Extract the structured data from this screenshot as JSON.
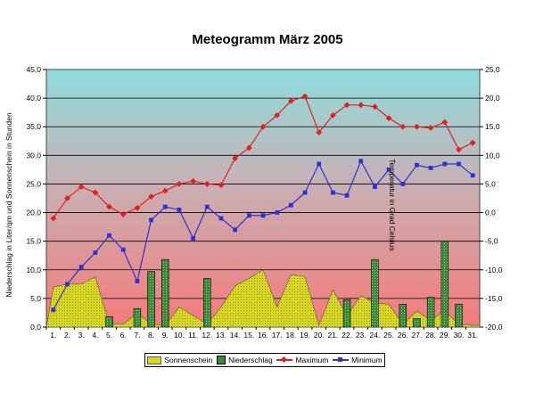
{
  "chart_data": {
    "type": "combo",
    "title": "Meteogramm März 2005",
    "ylabel_left": "Niederschlag in Liter/qm und Sonnenschein in Stunden",
    "ylabel_right": "Temperatur in Grad Celsius",
    "ylim_left": [
      0,
      45
    ],
    "ylim_right": [
      -20,
      25
    ],
    "left_ticks": [
      "0,0",
      "5,0",
      "10,0",
      "15,0",
      "20,0",
      "25,0",
      "30,0",
      "35,0",
      "40,0",
      "45,0"
    ],
    "right_ticks": [
      "-20,0",
      "-15,0",
      "-10,0",
      "-5,0",
      "0,0",
      "5,0",
      "10,0",
      "15,0",
      "20,0",
      "25,0"
    ],
    "categories": [
      "1.",
      "2.",
      "3.",
      "4.",
      "5.",
      "6.",
      "7.",
      "8.",
      "9.",
      "10.",
      "11.",
      "12.",
      "13.",
      "14.",
      "15.",
      "16.",
      "17.",
      "18.",
      "19.",
      "20.",
      "21.",
      "22.",
      "23.",
      "24.",
      "25.",
      "26.",
      "27.",
      "28.",
      "29.",
      "30.",
      "31."
    ],
    "series": [
      {
        "name": "Sonnenschein",
        "axis": "left",
        "kind": "area",
        "color": "#d8d820",
        "values": [
          7.0,
          7.5,
          7.5,
          8.8,
          0.5,
          0.5,
          2.5,
          0.5,
          0.3,
          3.5,
          2.0,
          0.5,
          3.5,
          7.2,
          8.5,
          10.0,
          3.5,
          9.2,
          8.8,
          0.3,
          6.5,
          2.0,
          5.5,
          4.2,
          4.0,
          0.5,
          2.8,
          1.2,
          2.8,
          0.5,
          0.3
        ]
      },
      {
        "name": "Niederschlag",
        "axis": "left",
        "kind": "bar",
        "color": "#3a8a3a",
        "values": [
          0,
          0,
          0,
          0,
          1.8,
          0,
          3.2,
          9.7,
          11.8,
          0,
          0,
          8.5,
          0,
          0,
          0,
          0,
          0,
          0,
          0,
          0,
          0,
          4.8,
          0,
          11.8,
          0,
          4.0,
          1.5,
          5.2,
          15.0,
          4.0,
          0
        ]
      },
      {
        "name": "Maximum",
        "axis": "right",
        "kind": "line",
        "color": "#e02020",
        "values": [
          -1.0,
          2.5,
          4.5,
          3.5,
          1.0,
          -0.3,
          0.8,
          2.8,
          3.8,
          5.0,
          5.5,
          5.0,
          4.8,
          9.5,
          11.3,
          15.0,
          17.0,
          19.5,
          20.3,
          14.0,
          17.0,
          18.8,
          18.8,
          18.5,
          16.5,
          15.0,
          15.0,
          14.8,
          15.8,
          11.0,
          12.2
        ]
      },
      {
        "name": "Minimum",
        "axis": "right",
        "kind": "line",
        "color": "#3030d0",
        "values": [
          -17.0,
          -12.5,
          -9.5,
          -7.0,
          -4.0,
          -6.5,
          -12.0,
          -1.3,
          1.0,
          0.5,
          -4.5,
          1.0,
          -1.0,
          -3.0,
          -0.5,
          -0.5,
          0.0,
          1.3,
          3.5,
          8.5,
          3.5,
          3.0,
          9.0,
          4.5,
          7.5,
          5.0,
          8.3,
          7.8,
          8.5,
          8.5,
          6.5
        ]
      }
    ],
    "legend": [
      "Sonnenschein",
      "Niederschlag",
      "Maximum",
      "Minimum"
    ],
    "legend_position": "bottom",
    "grid": true,
    "background_colors": [
      "#8fd8d8",
      "#f08080"
    ]
  }
}
